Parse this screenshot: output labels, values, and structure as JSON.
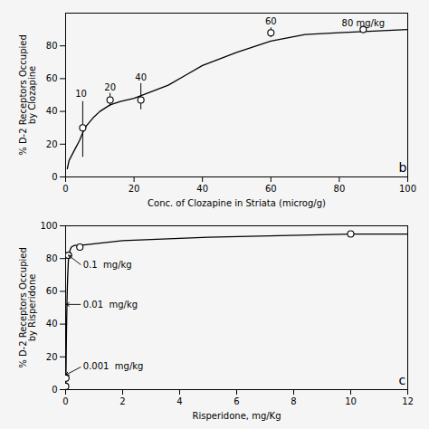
{
  "chart_data": [
    {
      "type": "line",
      "title": "b",
      "xlabel": "Conc. of Clozapine in Striata (microg/g)",
      "ylabel": "% D-2 Receptors Occupied\nby Clozapine",
      "xlim": [
        0,
        100
      ],
      "ylim": [
        0,
        100
      ],
      "xticks": [
        0,
        20,
        40,
        60,
        80,
        100
      ],
      "yticks": [
        0,
        20,
        40,
        60,
        80
      ],
      "grid": false,
      "series": [
        {
          "type": "line",
          "color": "#000000",
          "x": [
            0.5,
            1,
            2,
            3,
            4,
            5,
            6,
            8,
            10,
            13,
            16,
            20,
            25,
            30,
            35,
            40,
            50,
            60,
            70,
            80,
            90,
            100
          ],
          "values": [
            5,
            10,
            14,
            18,
            22,
            27,
            31,
            36,
            40,
            44,
            46,
            48,
            52,
            56,
            62,
            68,
            76,
            83,
            87,
            88,
            89,
            90
          ]
        },
        {
          "type": "scatter",
          "color": "#000000",
          "marker": "open_circle",
          "x": [
            5,
            13,
            22,
            60,
            87
          ],
          "values": [
            30,
            47,
            47,
            88,
            90
          ],
          "error_lo": [
            18,
            4,
            6,
            3,
            0
          ],
          "error_hi": [
            16,
            4,
            10,
            3,
            0
          ]
        }
      ],
      "annotations": [
        {
          "text": "10",
          "x": 4.5,
          "y": 49
        },
        {
          "text": "20",
          "x": 13,
          "y": 53
        },
        {
          "text": "40",
          "x": 22,
          "y": 59
        },
        {
          "text": "60",
          "x": 60,
          "y": 93
        },
        {
          "text": "80 mg/kg",
          "x": 87,
          "y": 92
        }
      ]
    },
    {
      "type": "line",
      "title": "c",
      "xlabel": "Risperidone, mg/Kg",
      "ylabel": "% D-2 Receptors Occupied\nby Risperidone",
      "xlim": [
        0,
        12
      ],
      "ylim": [
        0,
        100
      ],
      "xticks": [
        0,
        2,
        4,
        6,
        8,
        10,
        12
      ],
      "yticks": [
        0,
        20,
        40,
        60,
        80,
        100
      ],
      "grid": false,
      "series": [
        {
          "type": "line",
          "color": "#000000",
          "x": [
            0.0,
            0.001,
            0.003,
            0.005,
            0.008,
            0.01,
            0.015,
            0.02,
            0.03,
            0.05,
            0.07,
            0.1,
            0.15,
            0.2,
            0.3,
            0.5,
            1.0,
            2.0,
            5.0,
            10.0,
            12.0
          ],
          "values": [
            0,
            1,
            2,
            3,
            5,
            7,
            12,
            20,
            35,
            55,
            68,
            80,
            85,
            87,
            88,
            88,
            89,
            91,
            93,
            95,
            95
          ]
        },
        {
          "type": "scatter",
          "color": "#000000",
          "marker": "open_circle",
          "x": [
            0.001,
            0.01,
            0.1,
            0.5,
            10.0
          ],
          "values": [
            2,
            7,
            82,
            87,
            95
          ]
        }
      ],
      "annotations": [
        {
          "text": "0.1  mg/kg",
          "x": 0.55,
          "y": 76,
          "arrow_x": 0.1,
          "arrow_y": 82
        },
        {
          "text": "0.01  mg/kg",
          "x": 0.55,
          "y": 52,
          "arrow_x": 0.02,
          "arrow_y": 52
        },
        {
          "text": "0.001  mg/kg",
          "x": 0.55,
          "y": 14,
          "arrow_x": 0.01,
          "arrow_y": 9
        }
      ]
    }
  ]
}
